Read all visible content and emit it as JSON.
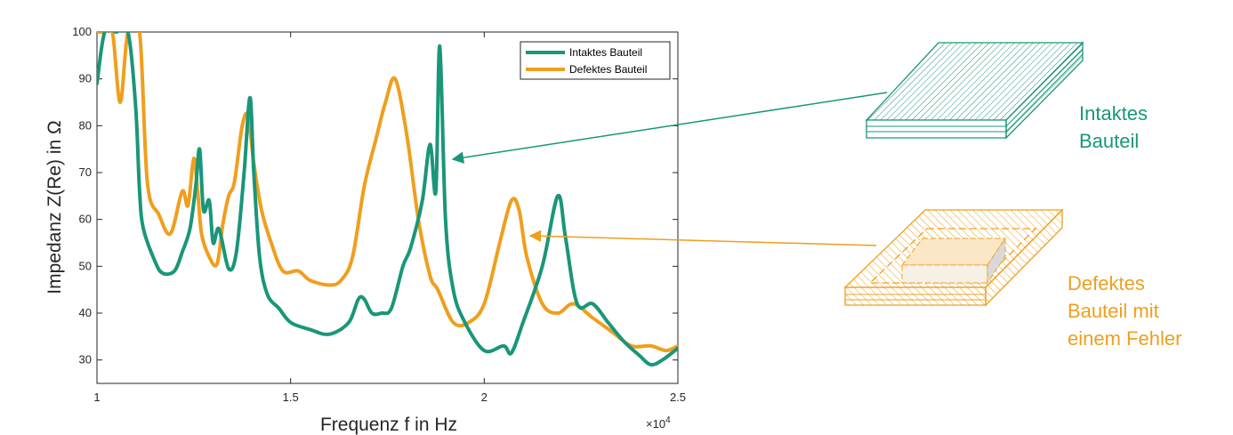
{
  "colors": {
    "intact": "#1a9679",
    "defect": "#ef9f1e"
  },
  "chart_data": {
    "type": "line",
    "xlabel": "Frequenz f in Hz",
    "ylabel": "Impedanz Z(Re) in Ω",
    "x_exponent_label": "×10",
    "x_exponent": "4",
    "xlim": [
      1.0,
      2.5
    ],
    "ylim": [
      25,
      100
    ],
    "xticks": [
      1,
      1.5,
      2,
      2.5
    ],
    "xtick_labels": [
      "1",
      "1.5",
      "2",
      "2.5"
    ],
    "yticks": [
      30,
      40,
      50,
      60,
      70,
      80,
      90,
      100
    ],
    "ytick_labels": [
      "30",
      "40",
      "50",
      "60",
      "70",
      "80",
      "90",
      "100"
    ],
    "grid": false,
    "legend_position": "top-right",
    "series": [
      {
        "name": "Intaktes Bauteil",
        "x": [
          1.0,
          1.02,
          1.05,
          1.08,
          1.1,
          1.11,
          1.12,
          1.15,
          1.17,
          1.2,
          1.22,
          1.24,
          1.255,
          1.265,
          1.275,
          1.29,
          1.3,
          1.315,
          1.34,
          1.36,
          1.38,
          1.395,
          1.405,
          1.42,
          1.44,
          1.47,
          1.5,
          1.55,
          1.6,
          1.65,
          1.675,
          1.69,
          1.71,
          1.735,
          1.76,
          1.79,
          1.81,
          1.84,
          1.86,
          1.875,
          1.885,
          1.9,
          1.92,
          1.95,
          2.0,
          2.05,
          2.07,
          2.1,
          2.15,
          2.19,
          2.21,
          2.24,
          2.28,
          2.32,
          2.36,
          2.4,
          2.43,
          2.46,
          2.5
        ],
        "values": [
          89,
          100,
          100,
          100,
          84,
          66,
          58,
          51,
          48.5,
          49,
          53,
          58,
          67,
          75,
          62,
          64,
          55,
          58,
          49.5,
          53,
          70,
          86,
          70,
          52,
          44,
          41,
          38,
          36.5,
          35.5,
          38,
          43,
          43,
          40,
          40,
          41,
          50,
          54,
          64,
          76,
          66,
          97,
          60,
          45,
          38,
          32,
          33,
          31.5,
          38,
          50,
          65,
          56,
          42,
          42,
          38,
          34,
          31,
          29,
          30,
          32.5
        ]
      },
      {
        "name": "Defektes Bauteil",
        "x": [
          1.0,
          1.02,
          1.04,
          1.06,
          1.08,
          1.11,
          1.13,
          1.16,
          1.19,
          1.22,
          1.235,
          1.25,
          1.26,
          1.27,
          1.29,
          1.31,
          1.325,
          1.34,
          1.355,
          1.375,
          1.39,
          1.405,
          1.425,
          1.45,
          1.48,
          1.52,
          1.55,
          1.6,
          1.63,
          1.66,
          1.69,
          1.72,
          1.745,
          1.77,
          1.8,
          1.83,
          1.86,
          1.88,
          1.92,
          1.96,
          2.0,
          2.04,
          2.07,
          2.09,
          2.11,
          2.15,
          2.19,
          2.23,
          2.28,
          2.33,
          2.38,
          2.43,
          2.47,
          2.5
        ],
        "values": [
          100,
          100,
          100,
          85,
          100,
          100,
          68,
          61,
          57,
          66,
          63,
          73,
          66,
          57,
          52,
          50.5,
          59,
          65,
          68,
          80,
          82,
          72,
          62,
          55,
          49,
          49,
          47,
          46,
          47,
          52,
          67,
          77,
          85,
          90,
          78,
          60,
          48,
          45,
          38,
          38,
          42,
          55,
          64,
          62,
          52,
          42,
          40,
          42,
          39,
          36,
          33,
          33,
          32,
          33
        ]
      }
    ]
  },
  "annotations": {
    "intact_label": "Intaktes\nBauteil",
    "defect_label": "Defektes\nBauteil mit\neinem Fehler"
  }
}
